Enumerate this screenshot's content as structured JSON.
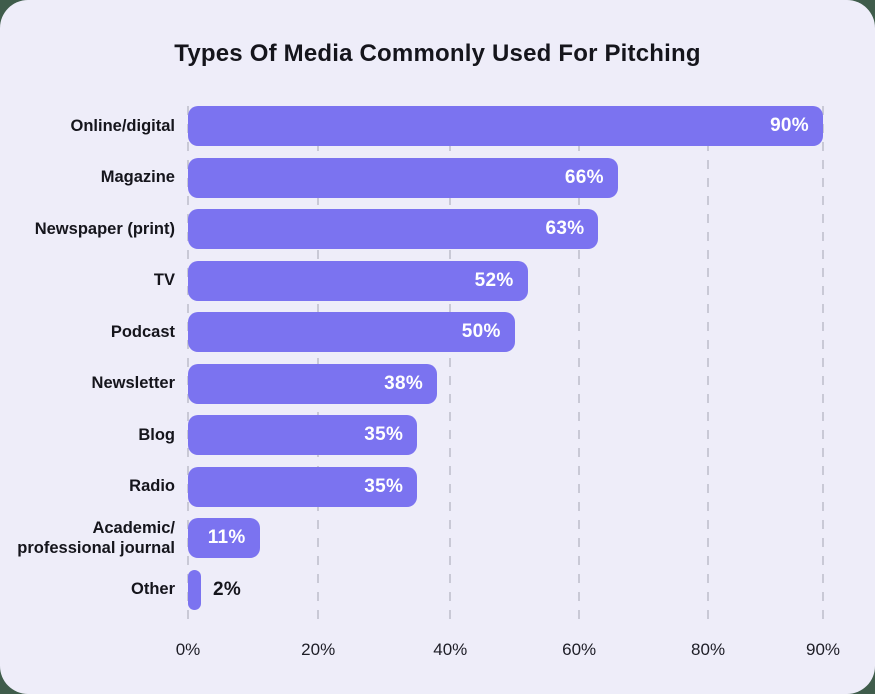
{
  "page": {
    "background_outside": "#3F5C4B",
    "card_background": "#EEEDF9"
  },
  "chart_data": {
    "type": "bar",
    "orientation": "horizontal",
    "title": "Types Of Media Commonly Used For Pitching",
    "categories": [
      "Online/digital",
      "Magazine",
      "Newspaper (print)",
      "TV",
      "Podcast",
      "Newsletter",
      "Blog",
      "Radio",
      "Academic/\nprofessional journal",
      "Other"
    ],
    "values": [
      90,
      66,
      63,
      52,
      50,
      38,
      35,
      35,
      11,
      2
    ],
    "value_suffix": "%",
    "xlim": [
      0,
      90
    ],
    "xticks": [
      {
        "label": "0%",
        "value": 0
      },
      {
        "label": "20%",
        "value": 20
      },
      {
        "label": "40%",
        "value": 40
      },
      {
        "label": "60%",
        "value": 60
      },
      {
        "label": "80%",
        "value": 80
      },
      {
        "label": "90%",
        "value": 90
      }
    ],
    "axis_scale_stops": {
      "values": [
        0,
        20,
        40,
        60,
        80,
        90
      ],
      "positions_pct": [
        0,
        20.5,
        41.3,
        61.6,
        81.9,
        100
      ]
    },
    "grid": "dashed-vertical",
    "legend": "none",
    "ylabel": "",
    "xlabel": "",
    "colors": {
      "bar": "#7B73F0",
      "value_label_inside": "#FFFFFF",
      "value_label_outside": "#15151C",
      "title": "#15151C",
      "category_label": "#15151C",
      "tick_label": "#1D1D26",
      "gridline": "#C9C9D6"
    }
  }
}
